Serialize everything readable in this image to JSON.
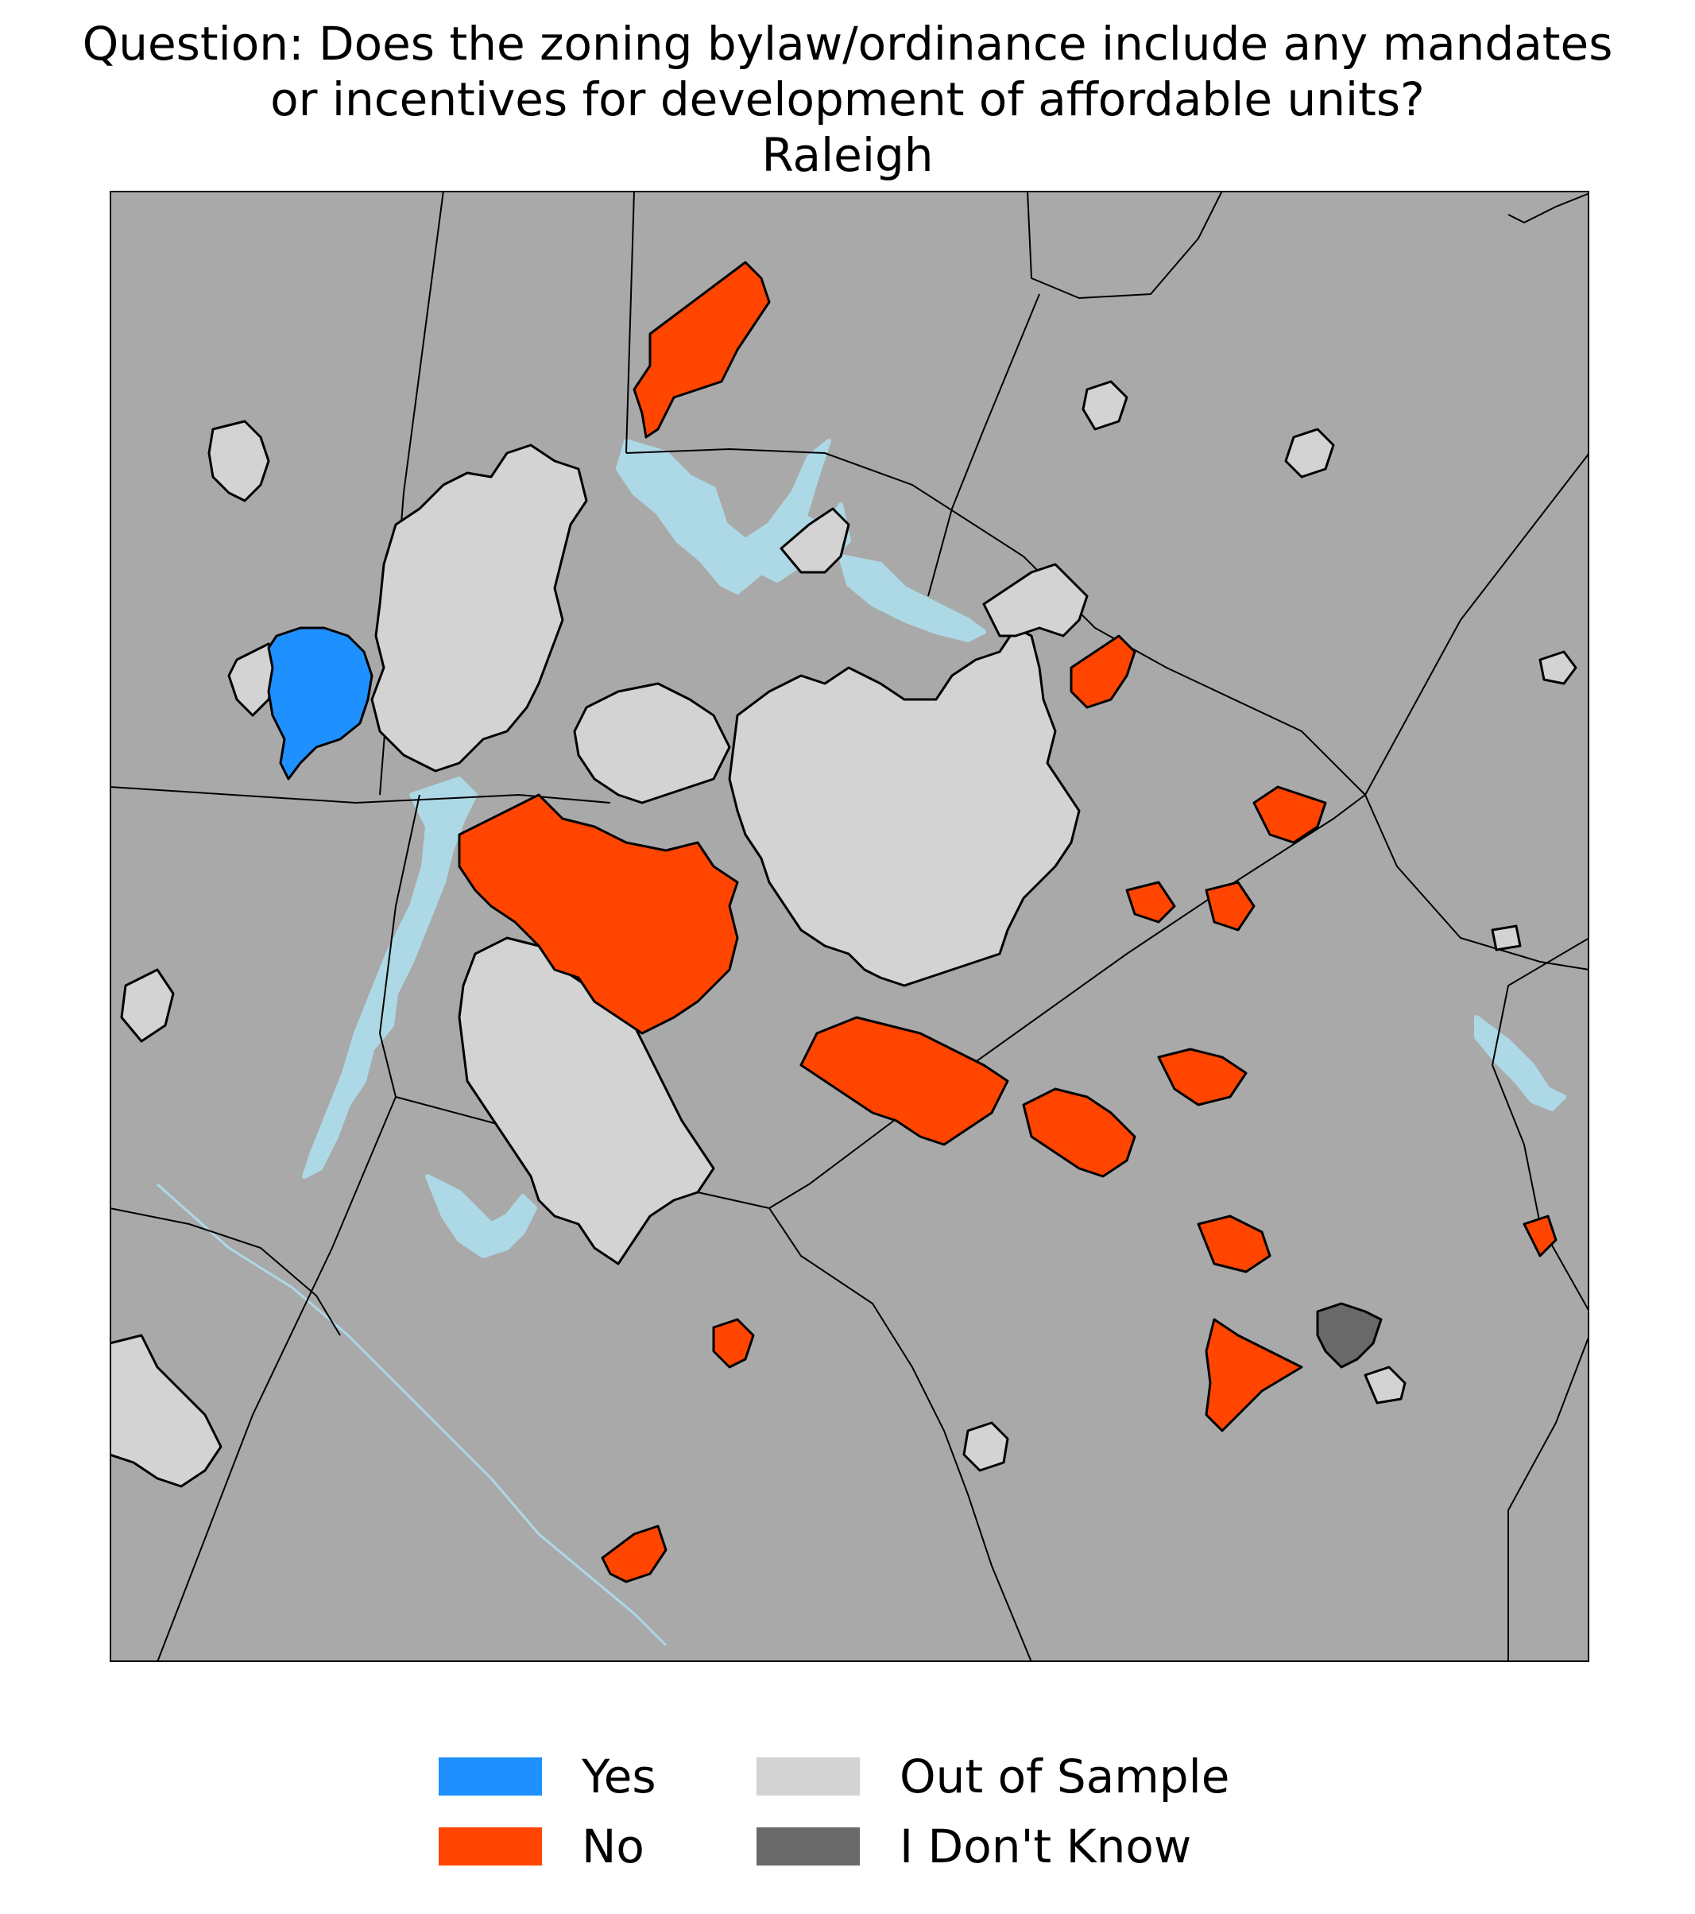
{
  "title": {
    "line1": "Question: Does the zoning bylaw/ordinance include any mandates",
    "line2": "or incentives for development of affordable units?",
    "line3": "Raleigh"
  },
  "map": {
    "background_color": "#a9a9a9",
    "water_color": "#add8e6",
    "boundary_color": "#000000"
  },
  "legend": {
    "items": [
      {
        "label": "Yes",
        "color": "#1e90ff"
      },
      {
        "label": "No",
        "color": "#ff4500"
      },
      {
        "label": "Out of Sample",
        "color": "#d3d3d3"
      },
      {
        "label": "I Don't Know",
        "color": "#696969"
      }
    ]
  }
}
